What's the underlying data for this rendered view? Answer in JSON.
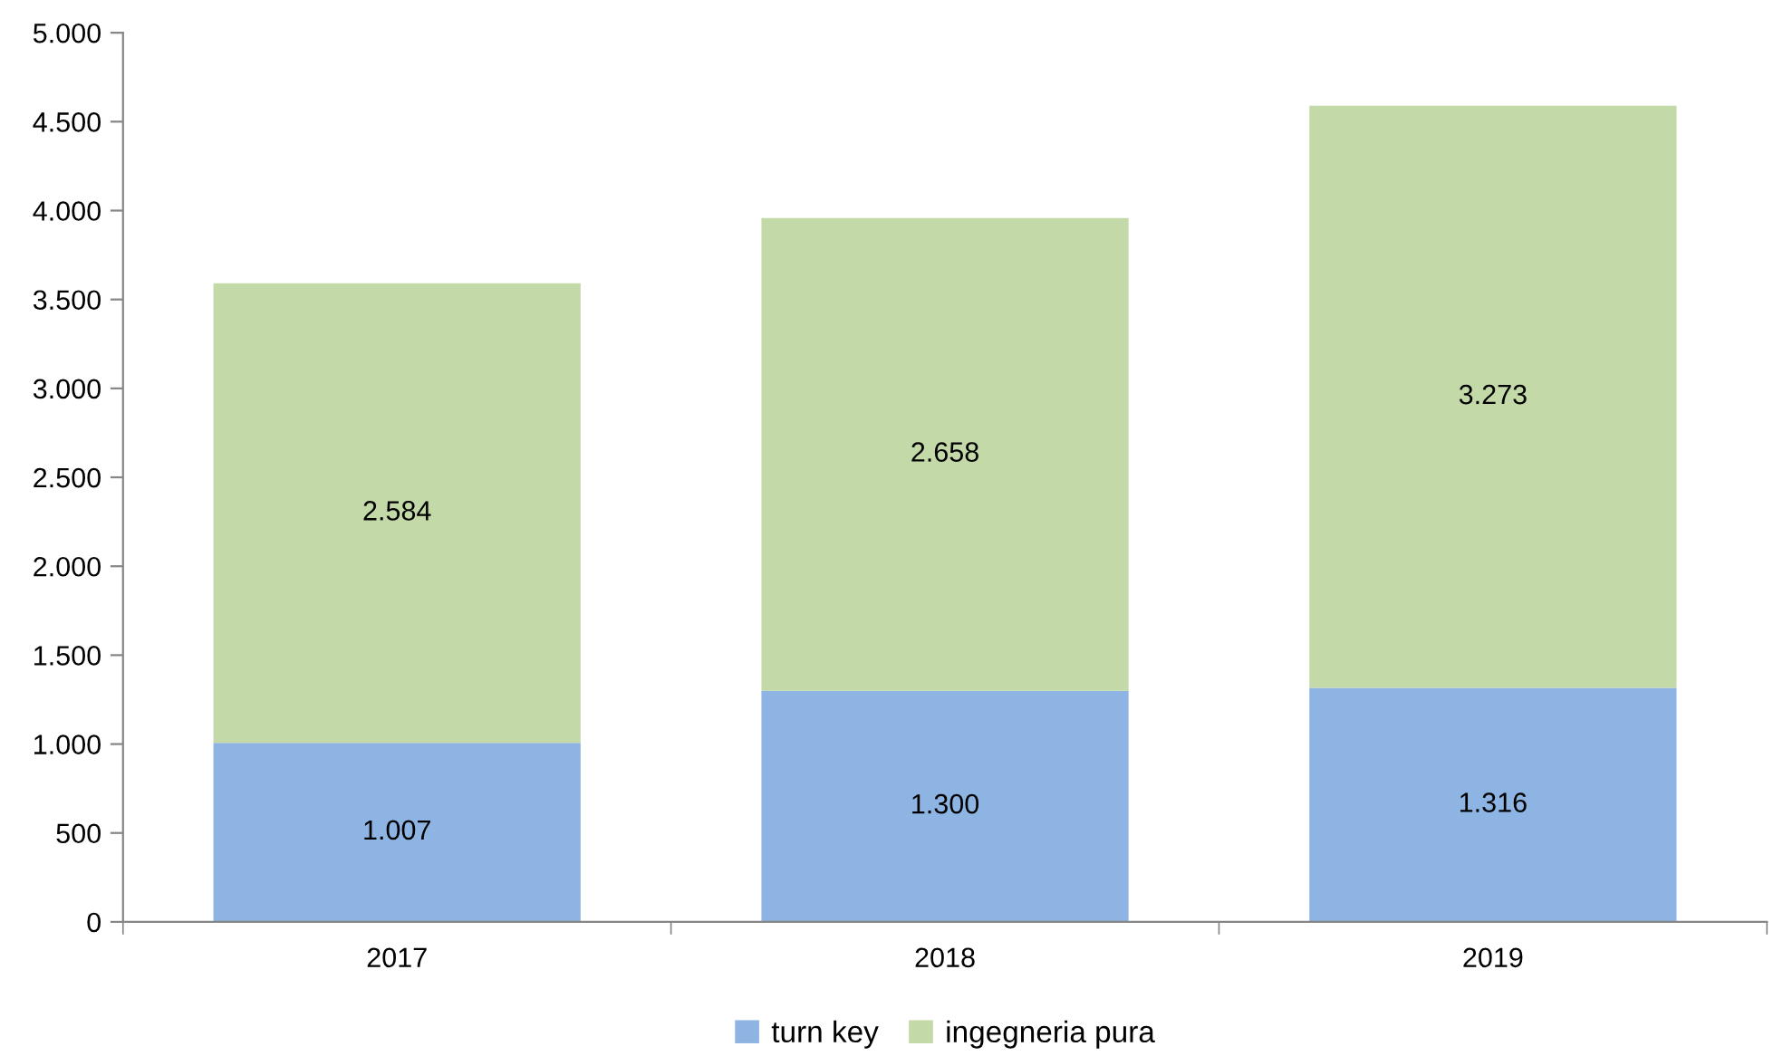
{
  "chart_data": {
    "type": "bar",
    "stacked": true,
    "categories": [
      "2017",
      "2018",
      "2019"
    ],
    "series": [
      {
        "name": "turn key",
        "color": "#8db4e2",
        "values": [
          1007,
          1300,
          1316
        ],
        "value_labels": [
          "1.007",
          "1.300",
          "1.316"
        ]
      },
      {
        "name": "ingegneria pura",
        "color": "#c4d9a8",
        "values": [
          2584,
          2658,
          3273
        ],
        "value_labels": [
          "2.584",
          "2.658",
          "3.273"
        ]
      }
    ],
    "ylim": [
      0,
      5000
    ],
    "yticks": [
      {
        "value": 0,
        "label": "0"
      },
      {
        "value": 500,
        "label": "500"
      },
      {
        "value": 1000,
        "label": "1.000"
      },
      {
        "value": 1500,
        "label": "1.500"
      },
      {
        "value": 2000,
        "label": "2.000"
      },
      {
        "value": 2500,
        "label": "2.500"
      },
      {
        "value": 3000,
        "label": "3.000"
      },
      {
        "value": 3500,
        "label": "3.500"
      },
      {
        "value": 4000,
        "label": "4.000"
      },
      {
        "value": 4500,
        "label": "4.500"
      },
      {
        "value": 5000,
        "label": "5.000"
      }
    ],
    "grid": false,
    "legend": "bottom"
  }
}
